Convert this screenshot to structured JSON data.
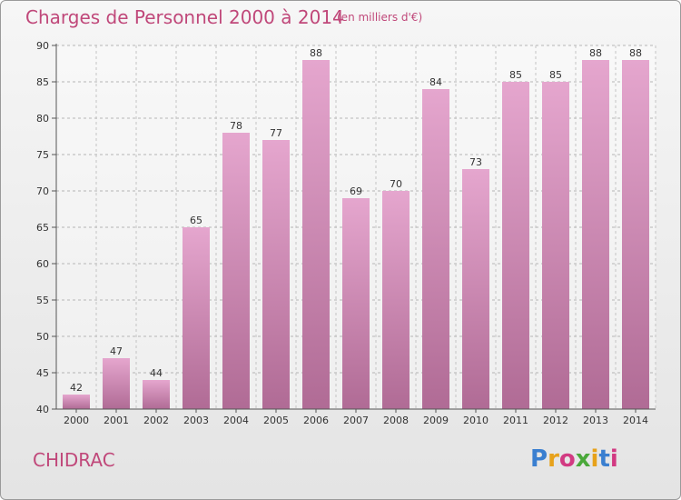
{
  "header": {
    "title": "Charges de Personnel 2000 à 2014",
    "unit": "(en milliers d'€)"
  },
  "footer": {
    "commune": "CHIDRAC",
    "logo": {
      "letters": [
        "P",
        "r",
        "o",
        "x",
        "i",
        "t",
        "i"
      ],
      "colors": [
        "#3a7fd0",
        "#e7a21b",
        "#d23a82",
        "#4aa83a",
        "#e7a21b",
        "#3a7fd0",
        "#d23a82"
      ]
    }
  },
  "colors": {
    "bar_top": "#e5a6ce",
    "bar_bottom": "#b06b95",
    "text_accent": "#c0487a"
  },
  "chart_data": {
    "type": "bar",
    "title": "Charges de Personnel 2000 à 2014",
    "subtitle": "(en milliers d'€)",
    "categories": [
      "2000",
      "2001",
      "2002",
      "2003",
      "2004",
      "2005",
      "2006",
      "2007",
      "2008",
      "2009",
      "2010",
      "2011",
      "2012",
      "2013",
      "2014"
    ],
    "values": [
      42,
      47,
      44,
      65,
      78,
      77,
      88,
      69,
      70,
      84,
      73,
      85,
      85,
      88,
      88
    ],
    "ylim": [
      40,
      90
    ],
    "yticks": [
      40,
      45,
      50,
      55,
      60,
      65,
      70,
      75,
      80,
      85,
      90
    ],
    "grid": true,
    "legend": "none"
  }
}
